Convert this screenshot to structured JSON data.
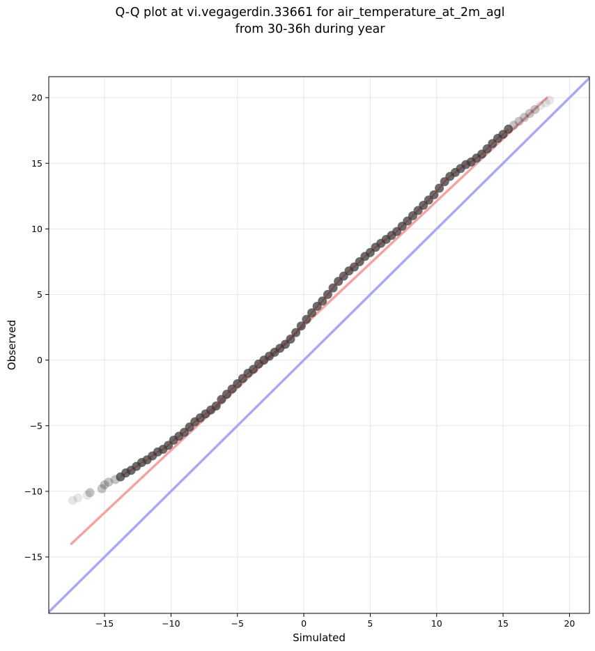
{
  "chart_data": {
    "type": "scatter",
    "title": [
      "Q-Q plot at vi.vegagerdin.33661 for air_temperature_at_2m_agl",
      "from 30-36h during year"
    ],
    "xlabel": "Simulated",
    "ylabel": "Observed",
    "xlim": [
      -19.2,
      21.5
    ],
    "ylim": [
      -19.3,
      21.6
    ],
    "xticks": [
      -15,
      -10,
      -5,
      0,
      5,
      10,
      15,
      20
    ],
    "yticks": [
      -15,
      -10,
      -5,
      0,
      5,
      10,
      15,
      20
    ],
    "xtick_labels": [
      "−15",
      "−10",
      "−5",
      "0",
      "5",
      "10",
      "15",
      "20"
    ],
    "ytick_labels": [
      "−15",
      "−10",
      "−5",
      "0",
      "5",
      "10",
      "15",
      "20"
    ],
    "grid": true,
    "quantile_points": {
      "x": [
        -17.4,
        -17.0,
        -16.3,
        -16.1,
        -15.2,
        -15.0,
        -14.7,
        -14.2,
        -13.8,
        -13.4,
        -13.0,
        -12.6,
        -12.2,
        -11.8,
        -11.4,
        -11.0,
        -10.6,
        -10.2,
        -9.8,
        -9.4,
        -9.0,
        -8.6,
        -8.2,
        -7.8,
        -7.4,
        -7.0,
        -6.6,
        -6.2,
        -5.8,
        -5.4,
        -5.0,
        -4.6,
        -4.2,
        -3.8,
        -3.4,
        -3.0,
        -2.6,
        -2.2,
        -1.8,
        -1.4,
        -1.0,
        -0.6,
        -0.2,
        0.2,
        0.6,
        1.0,
        1.4,
        1.8,
        2.2,
        2.6,
        3.0,
        3.4,
        3.8,
        4.2,
        4.6,
        5.0,
        5.4,
        5.8,
        6.2,
        6.6,
        7.0,
        7.4,
        7.8,
        8.2,
        8.6,
        9.0,
        9.4,
        9.8,
        10.2,
        10.6,
        11.0,
        11.4,
        11.8,
        12.2,
        12.6,
        13.0,
        13.4,
        13.8,
        14.2,
        14.6,
        15.0,
        15.4,
        15.8,
        16.2,
        16.6,
        17.0,
        17.4,
        17.8,
        18.2,
        18.5
      ],
      "y": [
        -10.7,
        -10.5,
        -10.3,
        -10.1,
        -9.8,
        -9.5,
        -9.3,
        -9.1,
        -8.9,
        -8.6,
        -8.4,
        -8.1,
        -7.8,
        -7.6,
        -7.3,
        -7.0,
        -6.8,
        -6.5,
        -6.1,
        -5.8,
        -5.5,
        -5.1,
        -4.7,
        -4.4,
        -4.1,
        -3.8,
        -3.5,
        -3.0,
        -2.6,
        -2.2,
        -1.8,
        -1.4,
        -1.0,
        -0.7,
        -0.3,
        0.0,
        0.3,
        0.6,
        0.9,
        1.2,
        1.6,
        2.1,
        2.6,
        3.1,
        3.6,
        4.1,
        4.5,
        5.0,
        5.5,
        6.0,
        6.4,
        6.8,
        7.1,
        7.5,
        7.9,
        8.2,
        8.6,
        8.9,
        9.2,
        9.5,
        9.8,
        10.2,
        10.6,
        11.0,
        11.4,
        11.8,
        12.2,
        12.6,
        13.1,
        13.6,
        14.0,
        14.3,
        14.6,
        14.9,
        15.1,
        15.4,
        15.7,
        16.1,
        16.5,
        16.9,
        17.2,
        17.6,
        17.9,
        18.2,
        18.5,
        18.8,
        19.1,
        19.4,
        19.6,
        19.8
      ]
    },
    "series": [
      {
        "kind": "fitted-line",
        "color": "#f4a3a3",
        "x": [
          -17.5,
          18.3
        ],
        "y": [
          -14.0,
          20.0
        ]
      },
      {
        "kind": "identity-line",
        "color": "#a8a8f4",
        "x": [
          -19.2,
          21.5
        ],
        "y": [
          -19.2,
          21.5
        ]
      }
    ],
    "point_color": "#3a3a3a"
  }
}
